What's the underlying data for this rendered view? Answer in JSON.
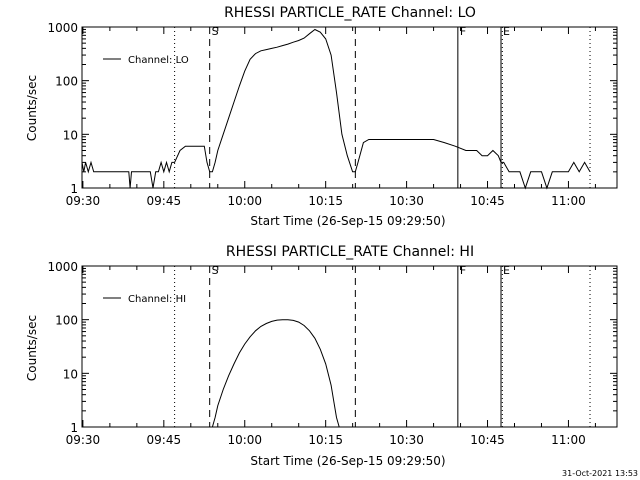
{
  "footer": "31-Oct-2021 13:53",
  "chart_data": [
    {
      "type": "line",
      "title": "RHESSI PARTICLE_RATE Channel: LO",
      "xlabel": "Start Time (26-Sep-15 09:29:50)",
      "ylabel": "Counts/sec",
      "yscale": "log",
      "ylim": [
        1,
        1000
      ],
      "xlim": [
        "09:29:50",
        "11:09:00"
      ],
      "x_tick_labels": [
        "09:30",
        "09:45",
        "10:00",
        "10:15",
        "10:30",
        "10:45",
        "11:00"
      ],
      "y_tick_labels": [
        "1",
        "10",
        "100",
        "1000"
      ],
      "legend": {
        "position": "top-left",
        "entries": [
          "Channel: LO"
        ]
      },
      "markers": [
        {
          "label": "",
          "time": "09:47:00",
          "style": "dotted"
        },
        {
          "label": "S",
          "time": "09:53:30",
          "style": "dashed"
        },
        {
          "label": "",
          "time": "10:20:30",
          "style": "dashed"
        },
        {
          "label": "F",
          "time": "10:39:30",
          "style": "solid"
        },
        {
          "label": "E",
          "time": "10:47:30",
          "style": "solid"
        },
        {
          "label": "",
          "time": "10:47:45",
          "style": "dotted"
        },
        {
          "label": "",
          "time": "11:04:00",
          "style": "dotted"
        }
      ],
      "series": [
        {
          "name": "Channel: LO",
          "color": "#000000",
          "x": [
            "09:29:50",
            "09:30:10",
            "09:30:30",
            "09:31:00",
            "09:31:30",
            "09:32:00",
            "09:32:30",
            "09:33:00",
            "09:34:00",
            "09:35:30",
            "09:37:00",
            "09:38:30",
            "09:38:45",
            "09:39:00",
            "09:40:00",
            "09:41:00",
            "09:42:30",
            "09:43:00",
            "09:43:30",
            "09:44:00",
            "09:44:30",
            "09:45:00",
            "09:45:30",
            "09:46:00",
            "09:46:30",
            "09:47:00",
            "09:48:00",
            "09:49:00",
            "09:50:00",
            "09:51:00",
            "09:52:00",
            "09:52:30",
            "09:53:00",
            "09:53:30",
            "09:54:00",
            "09:54:30",
            "09:55:00",
            "09:56:00",
            "09:57:00",
            "09:58:00",
            "09:59:00",
            "10:00:00",
            "10:01:00",
            "10:02:00",
            "10:03:00",
            "10:04:00",
            "10:05:00",
            "10:06:00",
            "10:07:00",
            "10:08:00",
            "10:09:00",
            "10:10:00",
            "10:11:00",
            "10:12:00",
            "10:13:00",
            "10:14:00",
            "10:15:00",
            "10:16:00",
            "10:17:00",
            "10:18:00",
            "10:19:00",
            "10:20:00",
            "10:20:30",
            "10:21:00",
            "10:22:00",
            "10:23:00",
            "10:25:00",
            "10:27:00",
            "10:29:00",
            "10:31:00",
            "10:33:00",
            "10:35:00",
            "10:37:00",
            "10:39:00",
            "10:41:00",
            "10:43:00",
            "10:44:00",
            "10:45:00",
            "10:46:00",
            "10:47:00",
            "10:47:30",
            "10:48:00",
            "10:49:00",
            "10:50:00",
            "10:51:00",
            "10:52:00",
            "10:53:00",
            "10:54:00",
            "10:55:00",
            "10:56:00",
            "10:57:00",
            "10:58:00",
            "10:59:00",
            "11:00:00",
            "11:01:00",
            "11:02:00",
            "11:03:00",
            "11:04:00"
          ],
          "y": [
            3,
            2,
            3,
            2,
            3,
            2,
            2,
            2,
            2,
            2,
            2,
            2,
            1,
            2,
            2,
            2,
            2,
            1,
            2,
            2,
            3,
            2,
            3,
            2,
            3,
            3,
            5,
            6,
            6,
            6,
            6,
            6,
            3,
            2,
            2,
            3,
            5,
            10,
            20,
            40,
            80,
            150,
            250,
            320,
            360,
            380,
            400,
            420,
            450,
            480,
            520,
            560,
            620,
            750,
            900,
            800,
            600,
            300,
            60,
            10,
            4,
            2,
            2,
            3,
            7,
            8,
            8,
            8,
            8,
            8,
            8,
            8,
            7,
            6,
            5,
            5,
            4,
            4,
            5,
            4,
            3,
            3,
            2,
            2,
            2,
            1,
            2,
            2,
            2,
            1,
            2,
            2,
            2,
            2,
            3,
            2,
            3,
            2
          ]
        }
      ]
    },
    {
      "type": "line",
      "title": "RHESSI PARTICLE_RATE Channel: HI",
      "xlabel": "Start Time (26-Sep-15 09:29:50)",
      "ylabel": "Counts/sec",
      "yscale": "log",
      "ylim": [
        1,
        1000
      ],
      "xlim": [
        "09:29:50",
        "11:09:00"
      ],
      "x_tick_labels": [
        "09:30",
        "09:45",
        "10:00",
        "10:15",
        "10:30",
        "10:45",
        "11:00"
      ],
      "y_tick_labels": [
        "1",
        "10",
        "100",
        "1000"
      ],
      "legend": {
        "position": "top-left",
        "entries": [
          "Channel: HI"
        ]
      },
      "markers": [
        {
          "label": "",
          "time": "09:47:00",
          "style": "dotted"
        },
        {
          "label": "S",
          "time": "09:53:30",
          "style": "dashed"
        },
        {
          "label": "",
          "time": "10:20:30",
          "style": "dashed"
        },
        {
          "label": "F",
          "time": "10:39:30",
          "style": "solid"
        },
        {
          "label": "E",
          "time": "10:47:30",
          "style": "solid"
        },
        {
          "label": "",
          "time": "10:47:45",
          "style": "dotted"
        },
        {
          "label": "",
          "time": "11:04:00",
          "style": "dotted"
        }
      ],
      "series": [
        {
          "name": "Channel: HI",
          "color": "#000000",
          "x": [
            "09:54:00",
            "09:54:30",
            "09:55:00",
            "09:56:00",
            "09:57:00",
            "09:58:00",
            "09:59:00",
            "10:00:00",
            "10:01:00",
            "10:02:00",
            "10:03:00",
            "10:04:00",
            "10:05:00",
            "10:06:00",
            "10:07:00",
            "10:08:00",
            "10:09:00",
            "10:10:00",
            "10:11:00",
            "10:12:00",
            "10:13:00",
            "10:14:00",
            "10:15:00",
            "10:16:00",
            "10:16:30",
            "10:17:00",
            "10:17:30"
          ],
          "y": [
            1,
            1.5,
            2.5,
            5,
            9,
            15,
            24,
            35,
            48,
            62,
            75,
            85,
            93,
            98,
            100,
            100,
            97,
            90,
            78,
            62,
            45,
            28,
            15,
            6,
            3,
            1.5,
            1
          ]
        }
      ]
    }
  ]
}
